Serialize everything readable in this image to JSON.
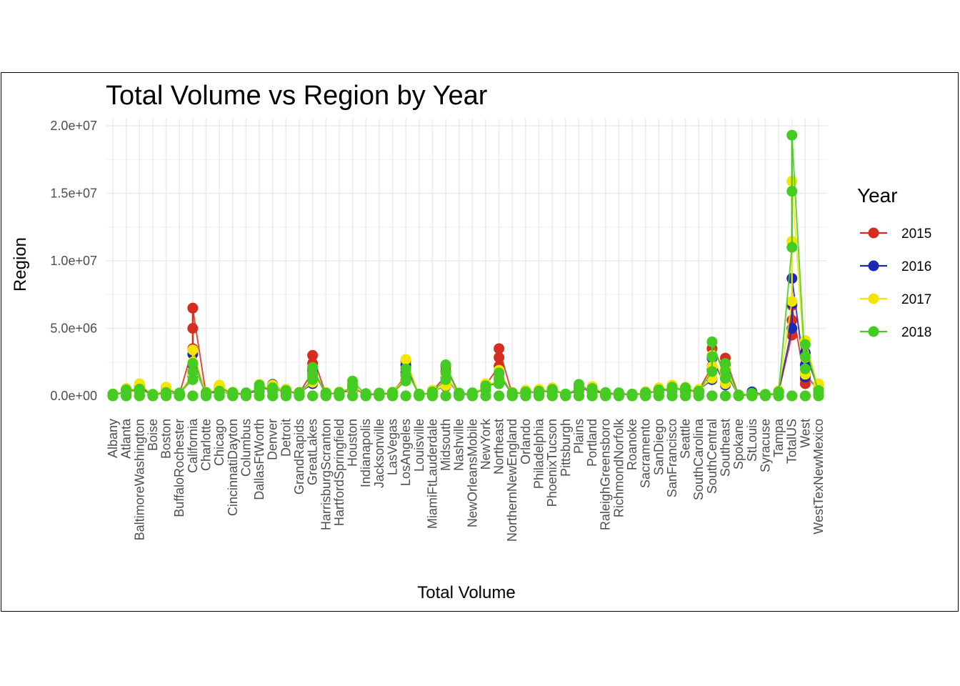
{
  "chart_data": {
    "type": "line",
    "title": "Total Volume vs Region by Year",
    "xlabel": "Total Volume",
    "ylabel": "Region",
    "ylim": [
      0,
      20000000
    ],
    "y_ticks": [
      {
        "value": 0,
        "label": "0.0e+00"
      },
      {
        "value": 5000000,
        "label": "5.0e+06"
      },
      {
        "value": 10000000,
        "label": "1.0e+07"
      },
      {
        "value": 15000000,
        "label": "1.5e+07"
      },
      {
        "value": 20000000,
        "label": "2.0e+07"
      }
    ],
    "grid": true,
    "legend_position": "right",
    "legend_title": "Year",
    "categories": [
      "Albany",
      "Atlanta",
      "BaltimoreWashington",
      "Boise",
      "Boston",
      "BuffaloRochester",
      "California",
      "Charlotte",
      "Chicago",
      "CincinnatiDayton",
      "Columbus",
      "DallasFtWorth",
      "Denver",
      "Detroit",
      "GrandRapids",
      "GreatLakes",
      "HarrisburgScranton",
      "HartfordSpringfield",
      "Houston",
      "Indianapolis",
      "Jacksonville",
      "LasVegas",
      "LosAngeles",
      "Louisville",
      "MiamiFtLauderdale",
      "Midsouth",
      "Nashville",
      "NewOrleansMobile",
      "NewYork",
      "Northeast",
      "NorthernNewEngland",
      "Orlando",
      "Philadelphia",
      "PhoenixTucson",
      "Pittsburgh",
      "Plains",
      "Portland",
      "RaleighGreensboro",
      "RichmondNorfolk",
      "Roanoke",
      "Sacramento",
      "SanDiego",
      "SanFrancisco",
      "Seattle",
      "SouthCarolina",
      "SouthCentral",
      "Southeast",
      "Spokane",
      "StLouis",
      "Syracuse",
      "Tampa",
      "TotalUS",
      "West",
      "WestTexNewMexico"
    ],
    "series": [
      {
        "name": "2015",
        "color": "#d62d20",
        "max": [
          100000,
          450000,
          700000,
          80000,
          550000,
          150000,
          6500000,
          200000,
          700000,
          200000,
          160000,
          700000,
          700000,
          400000,
          200000,
          3000000,
          200000,
          250000,
          650000,
          130000,
          160000,
          250000,
          2600000,
          100000,
          350000,
          2200000,
          150000,
          180000,
          800000,
          3500000,
          200000,
          350000,
          400000,
          500000,
          100000,
          700000,
          450000,
          180000,
          180000,
          100000,
          280000,
          500000,
          700000,
          550000,
          400000,
          3500000,
          2800000,
          40000,
          150000,
          80000,
          300000,
          6700000,
          1600000,
          700000
        ],
        "min": [
          40000,
          250000,
          350000,
          40000,
          300000,
          90000,
          3500000,
          90000,
          350000,
          100000,
          80000,
          400000,
          350000,
          200000,
          100000,
          1800000,
          100000,
          150000,
          400000,
          70000,
          80000,
          150000,
          1500000,
          50000,
          200000,
          1500000,
          80000,
          100000,
          500000,
          2200000,
          100000,
          200000,
          200000,
          300000,
          50000,
          400000,
          250000,
          100000,
          100000,
          50000,
          160000,
          300000,
          400000,
          300000,
          200000,
          2200000,
          1800000,
          20000,
          80000,
          40000,
          150000,
          4500000,
          900000,
          400000
        ]
      },
      {
        "name": "2016",
        "color": "#1a28b5",
        "max": [
          120000,
          500000,
          800000,
          100000,
          600000,
          180000,
          3100000,
          250000,
          750000,
          250000,
          200000,
          800000,
          850000,
          450000,
          250000,
          2000000,
          220000,
          280000,
          700000,
          150000,
          180000,
          280000,
          2300000,
          120000,
          400000,
          1400000,
          180000,
          200000,
          850000,
          1600000,
          220000,
          400000,
          450000,
          550000,
          120000,
          750000,
          500000,
          200000,
          200000,
          120000,
          300000,
          550000,
          750000,
          600000,
          450000,
          2800000,
          1800000,
          50000,
          300000,
          100000,
          350000,
          8700000,
          3200000,
          800000
        ],
        "min": [
          50000,
          280000,
          400000,
          50000,
          350000,
          100000,
          1500000,
          100000,
          400000,
          120000,
          100000,
          450000,
          400000,
          220000,
          120000,
          900000,
          110000,
          160000,
          450000,
          80000,
          100000,
          170000,
          1200000,
          60000,
          220000,
          700000,
          100000,
          110000,
          550000,
          900000,
          120000,
          220000,
          220000,
          320000,
          60000,
          450000,
          280000,
          120000,
          120000,
          60000,
          180000,
          320000,
          450000,
          320000,
          220000,
          1200000,
          800000,
          25000,
          100000,
          50000,
          170000,
          5000000,
          1400000,
          450000
        ]
      },
      {
        "name": "2017",
        "color": "#f2e600",
        "max": [
          130000,
          550000,
          900000,
          110000,
          650000,
          200000,
          3400000,
          280000,
          800000,
          280000,
          220000,
          850000,
          800000,
          500000,
          280000,
          2100000,
          250000,
          300000,
          750000,
          160000,
          200000,
          300000,
          2700000,
          130000,
          420000,
          1500000,
          200000,
          220000,
          900000,
          1900000,
          250000,
          420000,
          480000,
          600000,
          130000,
          800000,
          700000,
          220000,
          220000,
          130000,
          320000,
          600000,
          800000,
          650000,
          480000,
          3000000,
          2000000,
          60000,
          180000,
          110000,
          380000,
          15900000,
          4100000,
          900000
        ],
        "min": [
          60000,
          300000,
          450000,
          60000,
          380000,
          110000,
          1600000,
          110000,
          450000,
          130000,
          110000,
          480000,
          420000,
          240000,
          130000,
          1000000,
          120000,
          170000,
          480000,
          90000,
          110000,
          180000,
          1300000,
          65000,
          240000,
          750000,
          110000,
          120000,
          580000,
          1000000,
          130000,
          240000,
          240000,
          340000,
          65000,
          480000,
          300000,
          130000,
          130000,
          65000,
          190000,
          340000,
          480000,
          340000,
          240000,
          1300000,
          900000,
          30000,
          110000,
          55000,
          180000,
          7000000,
          1600000,
          480000
        ]
      },
      {
        "name": "2018",
        "color": "#44cc22",
        "max": [
          140000,
          450000,
          500000,
          120000,
          250000,
          220000,
          2400000,
          250000,
          350000,
          250000,
          230000,
          800000,
          600000,
          400000,
          250000,
          2100000,
          220000,
          250000,
          1100000,
          170000,
          210000,
          250000,
          2000000,
          140000,
          300000,
          2300000,
          210000,
          230000,
          750000,
          1700000,
          230000,
          300000,
          350000,
          480000,
          140000,
          850000,
          550000,
          250000,
          230000,
          140000,
          250000,
          450000,
          650000,
          600000,
          350000,
          4000000,
          2400000,
          70000,
          200000,
          120000,
          300000,
          19300000,
          3800000,
          400000
        ],
        "min": [
          70000,
          250000,
          300000,
          70000,
          150000,
          120000,
          1200000,
          120000,
          200000,
          120000,
          120000,
          500000,
          350000,
          220000,
          130000,
          1200000,
          110000,
          150000,
          600000,
          90000,
          120000,
          150000,
          1100000,
          70000,
          180000,
          1200000,
          120000,
          130000,
          450000,
          900000,
          130000,
          180000,
          200000,
          280000,
          70000,
          500000,
          300000,
          140000,
          130000,
          70000,
          150000,
          280000,
          380000,
          350000,
          200000,
          1800000,
          1300000,
          35000,
          120000,
          60000,
          160000,
          11000000,
          2000000,
          220000
        ]
      }
    ]
  }
}
